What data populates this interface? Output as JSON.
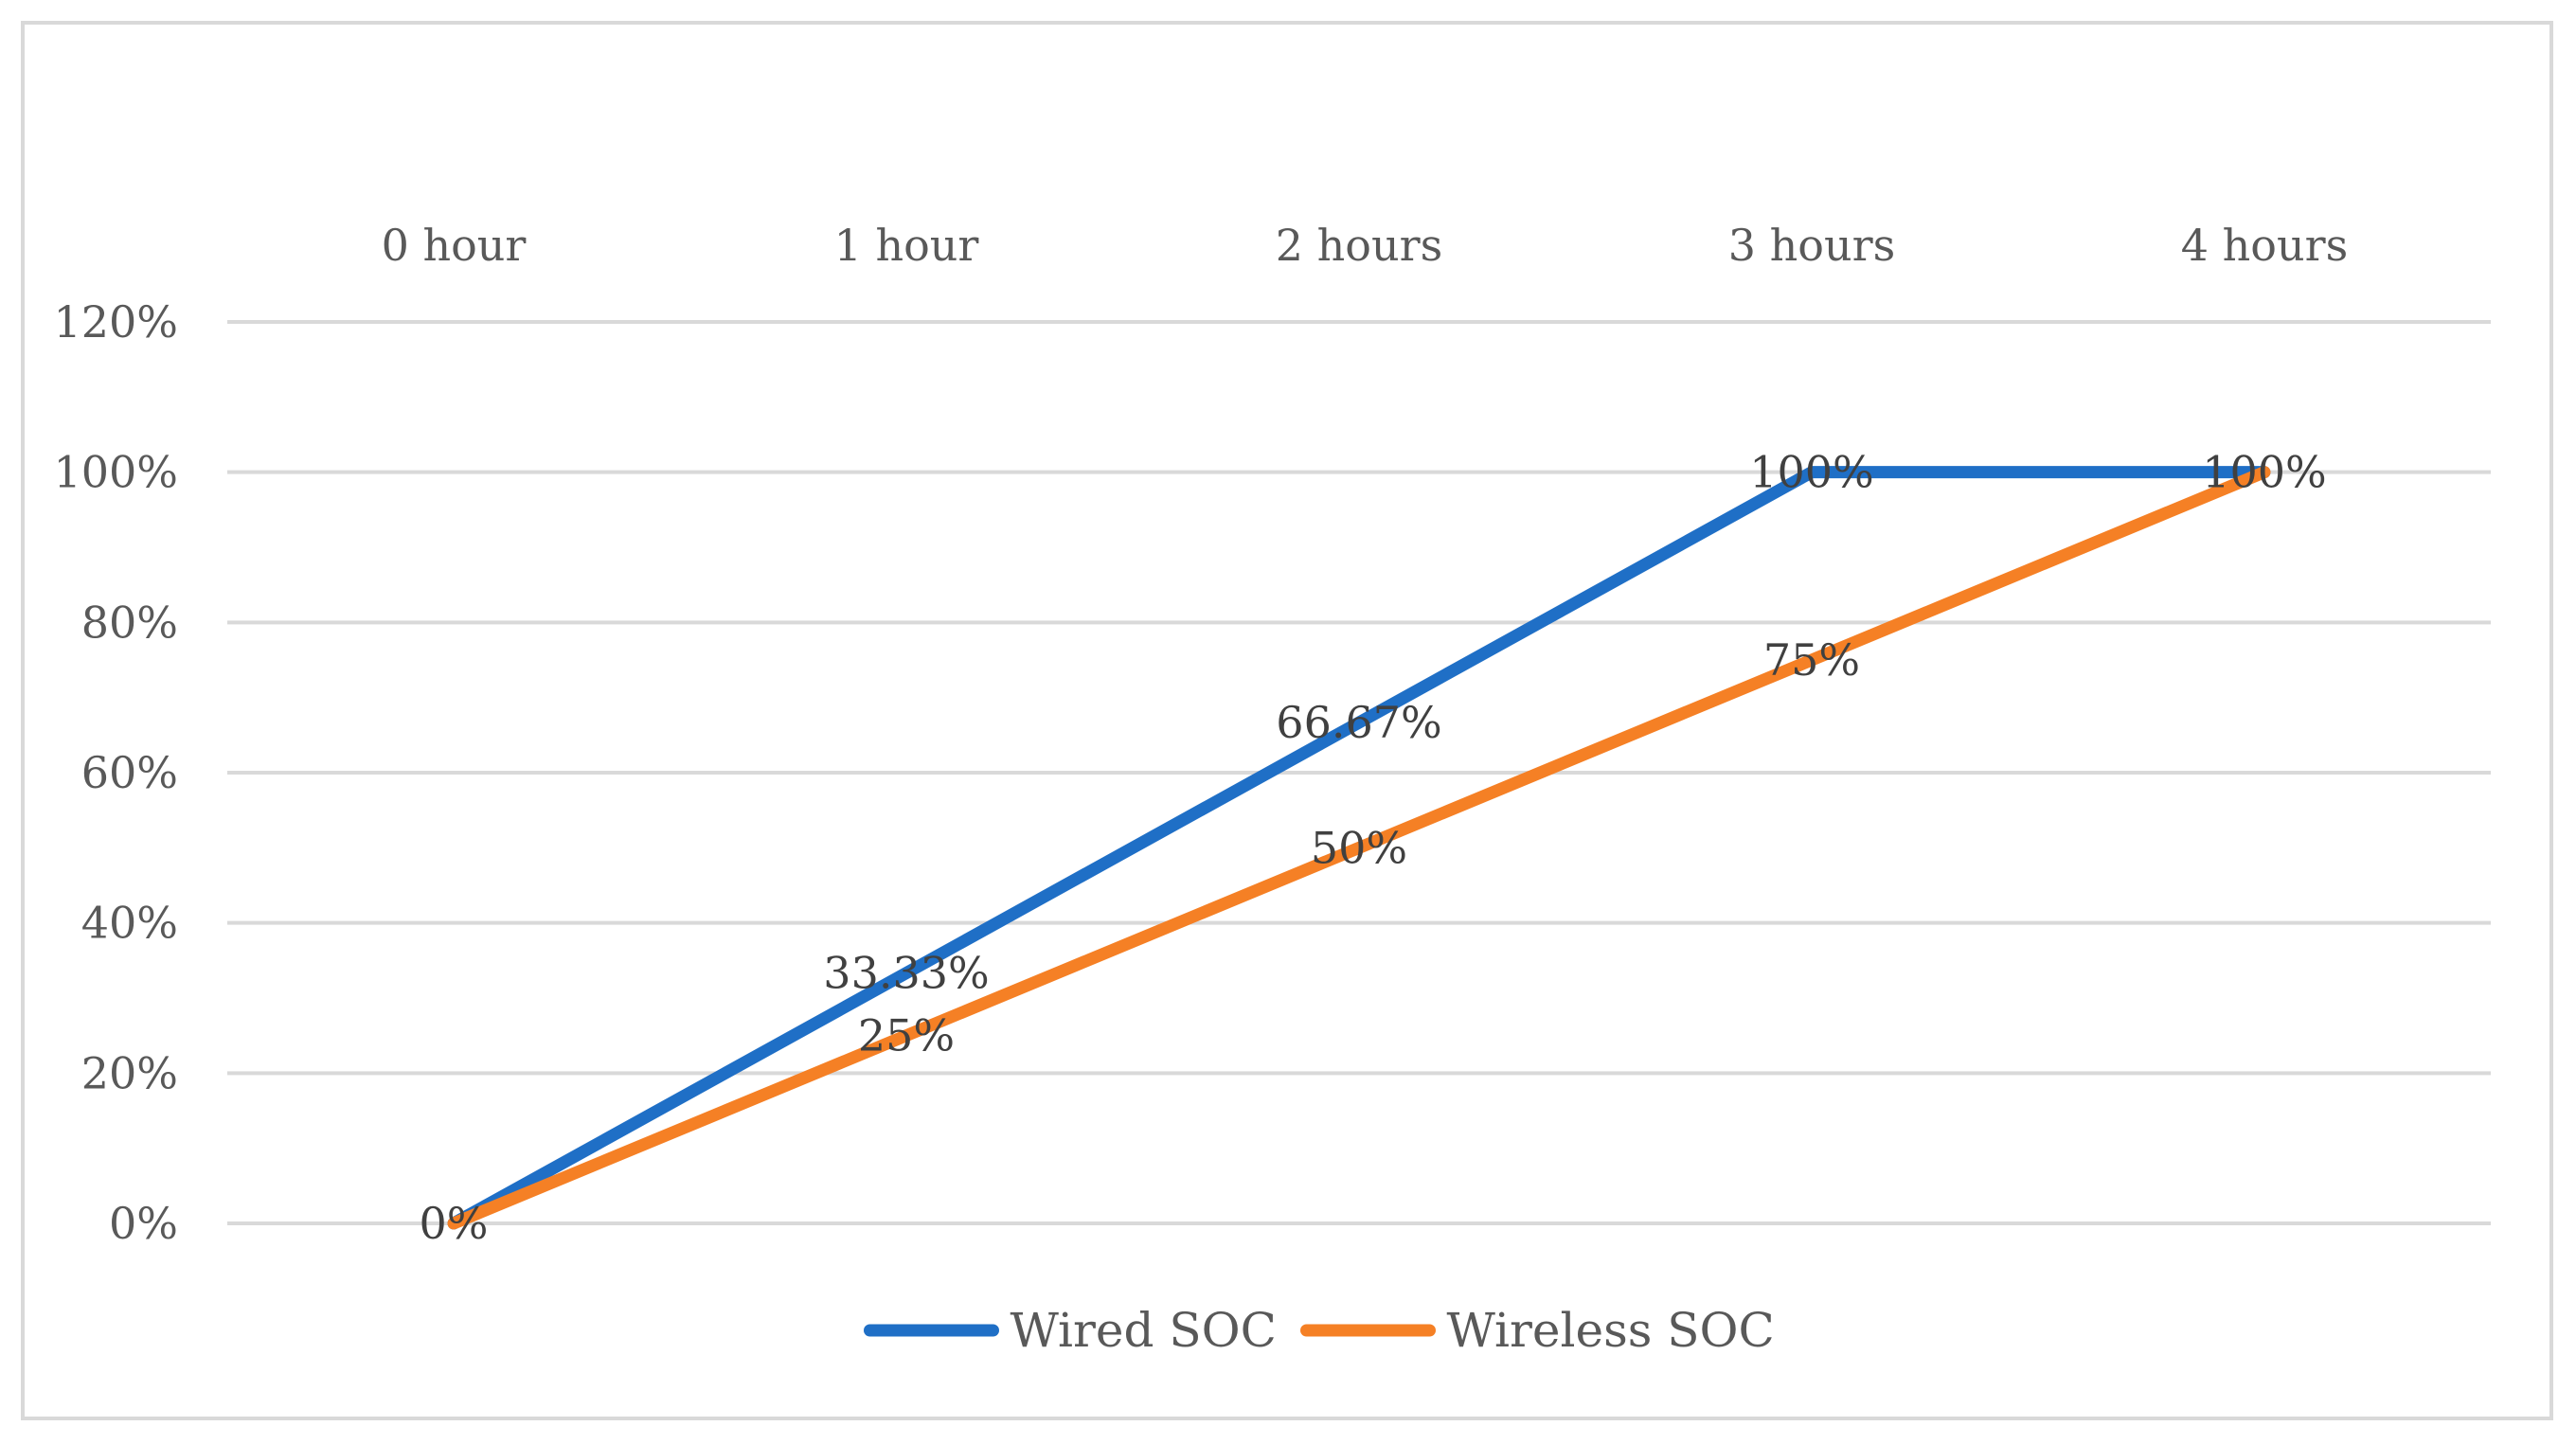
{
  "chart_data": {
    "type": "line",
    "title": "",
    "xlabel": "",
    "ylabel": "",
    "categories": [
      "0 hour",
      "1 hour",
      "2 hours",
      "3 hours",
      "4 hours"
    ],
    "ylim": [
      0,
      120
    ],
    "yticks": [
      "0%",
      "20%",
      "40%",
      "60%",
      "80%",
      "100%",
      "120%"
    ],
    "ytick_values": [
      0,
      20,
      40,
      60,
      80,
      100,
      120
    ],
    "x_axis_position": "top",
    "grid": true,
    "legend_position": "bottom",
    "series": [
      {
        "name": "Wired SOC",
        "color": "#1f6fc6",
        "values": [
          0,
          33.33,
          66.67,
          100,
          100
        ],
        "labels": [
          "0%",
          "33.33%",
          "66.67%",
          "100%",
          "100%"
        ]
      },
      {
        "name": "Wireless SOC",
        "color": "#f58025",
        "values": [
          0,
          25,
          50,
          75,
          100
        ],
        "labels": [
          "0%",
          "25%",
          "50%",
          "75%",
          "100%"
        ]
      }
    ]
  }
}
